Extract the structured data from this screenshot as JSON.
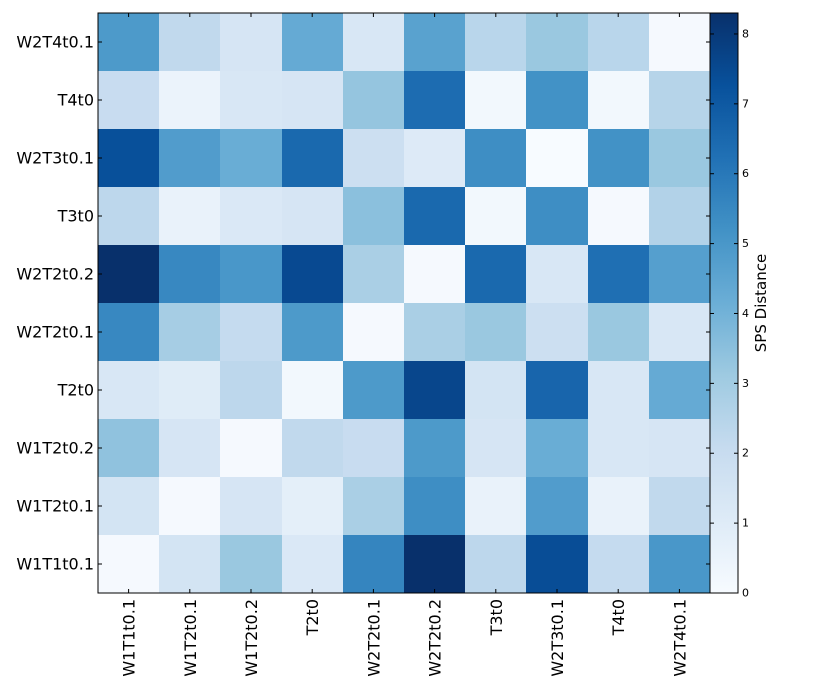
{
  "chart_data": {
    "type": "heatmap",
    "title": "",
    "xlabel": "",
    "ylabel": "",
    "colormap": "Blues",
    "x_categories": [
      "W1T1t0.1",
      "W1T2t0.1",
      "W1T2t0.2",
      "T2t0",
      "W2T2t0.1",
      "W2T2t0.2",
      "T3t0",
      "W2T3t0.1",
      "T4t0",
      "W2T4t0.1"
    ],
    "y_categories_top_to_bottom": [
      "W2T4t0.1",
      "T4t0",
      "W2T3t0.1",
      "T3t0",
      "W2T2t0.2",
      "W2T2t0.1",
      "T2t0",
      "W1T2t0.2",
      "W1T2t0.1",
      "W1T1t0.1"
    ],
    "values_top_to_bottom": [
      [
        4.9,
        2.2,
        1.4,
        4.3,
        1.3,
        4.6,
        2.4,
        3.2,
        2.4,
        0.1
      ],
      [
        2.0,
        0.5,
        1.3,
        1.4,
        3.3,
        6.4,
        0.2,
        5.2,
        0.2,
        2.5
      ],
      [
        7.3,
        4.8,
        4.2,
        6.5,
        1.8,
        1.1,
        5.3,
        0.0,
        5.2,
        3.2
      ],
      [
        2.3,
        0.6,
        1.2,
        1.4,
        3.5,
        6.5,
        0.2,
        5.3,
        0.1,
        2.6
      ],
      [
        8.3,
        5.5,
        5.0,
        7.5,
        2.8,
        0.1,
        6.5,
        1.3,
        6.3,
        4.7
      ],
      [
        5.5,
        2.9,
        2.1,
        4.9,
        0.1,
        2.8,
        3.2,
        1.8,
        3.2,
        1.3
      ],
      [
        1.3,
        1.0,
        2.3,
        0.2,
        4.9,
        7.6,
        1.5,
        6.6,
        1.3,
        4.3
      ],
      [
        3.4,
        1.4,
        0.1,
        2.2,
        2.0,
        4.9,
        1.4,
        4.2,
        1.3,
        1.4
      ],
      [
        1.5,
        0.1,
        1.4,
        0.8,
        2.8,
        5.3,
        0.6,
        4.8,
        0.6,
        2.2
      ],
      [
        0.1,
        1.5,
        3.2,
        1.2,
        5.6,
        8.3,
        2.3,
        7.4,
        2.1,
        5.0
      ]
    ],
    "vmin": 0,
    "vmax": 8.3,
    "colorbar": {
      "label": "SPS Distance",
      "ticks": [
        0,
        1,
        2,
        3,
        4,
        5,
        6,
        7,
        8
      ]
    }
  }
}
